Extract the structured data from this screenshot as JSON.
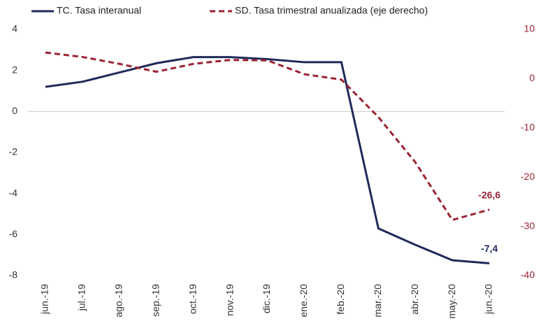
{
  "chart_data": {
    "type": "line",
    "categories": [
      "jun.-19",
      "jul.-19",
      "ago.-19",
      "sep.-19",
      "oct.-19",
      "nov.-19",
      "dic.-19",
      "ene.-20",
      "feb.-20",
      "mar.-20",
      "abr.-20",
      "may.-20",
      "jun.-20"
    ],
    "series": [
      {
        "name": "TC. Tasa interanual",
        "color": "#1f2a5a",
        "dash": false,
        "values": [
          1.2,
          1.45,
          1.9,
          2.35,
          2.65,
          2.65,
          2.55,
          2.4,
          2.4,
          -5.7,
          -6.5,
          -7.25,
          -7.4
        ],
        "value_labels": [
          null,
          null,
          null,
          null,
          null,
          null,
          null,
          null,
          null,
          null,
          null,
          null,
          "-7,4"
        ]
      },
      {
        "name": "SD. Tasa trimestral anualizada  (eje derecho)",
        "color": "#9b2335",
        "dash": true,
        "axis": "y2",
        "values": [
          5.3,
          4.4,
          3.0,
          1.4,
          3.0,
          3.8,
          3.7,
          0.9,
          -0.2,
          -7.8,
          -17,
          -28.7,
          -26.6
        ],
        "value_labels": [
          null,
          null,
          null,
          null,
          null,
          null,
          null,
          null,
          null,
          null,
          null,
          null,
          "-26,6"
        ]
      }
    ],
    "ylim": [
      -8,
      4
    ],
    "yticks": [
      -8,
      -6,
      -4,
      -2,
      0,
      2,
      4
    ],
    "y2lim": [
      -40,
      10
    ],
    "y2ticks": [
      -40,
      -30,
      -20,
      -10,
      0,
      10
    ]
  }
}
